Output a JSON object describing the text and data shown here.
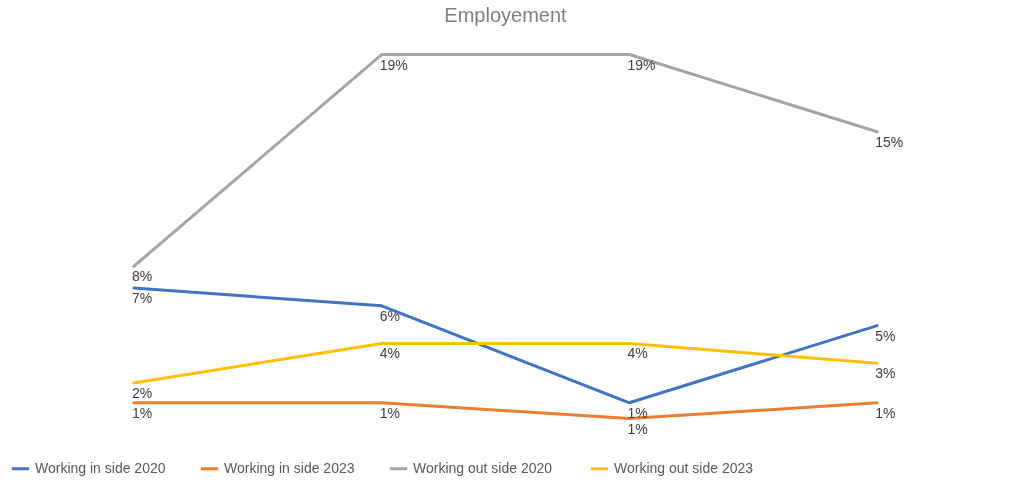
{
  "chart_data": {
    "type": "line",
    "title": "Employement",
    "categories": [
      null,
      null,
      null,
      null
    ],
    "series": [
      {
        "name": "Working in side 2020",
        "color": "#4472c4",
        "values": [
          7.2,
          6.3,
          1.4,
          5.3
        ],
        "value_labels": [
          "7%",
          "6%",
          "1%",
          "5%"
        ]
      },
      {
        "name": "Working in side 2023",
        "color": "#ed7d31",
        "values": [
          1.4,
          1.4,
          0.6,
          1.4
        ],
        "value_labels": [
          "1%",
          "1%",
          "1%",
          "1%"
        ]
      },
      {
        "name": "Working out  side 2020",
        "color": "#a5a5a5",
        "values": [
          8.3,
          19,
          19,
          15.1
        ],
        "value_labels": [
          "8%",
          "19%",
          "19%",
          "15%"
        ]
      },
      {
        "name": "Working out  side 2023",
        "color": "#ffc000",
        "values": [
          2.4,
          4.4,
          4.4,
          3.4
        ],
        "value_labels": [
          "2%",
          "4%",
          "4%",
          "3%"
        ]
      }
    ],
    "legend": "bottom"
  }
}
